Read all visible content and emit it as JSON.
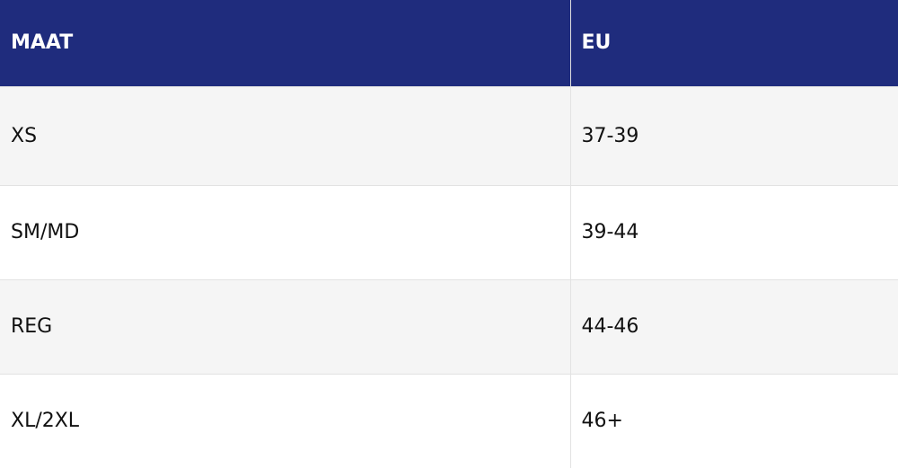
{
  "table": {
    "header": [
      "MAAT",
      "EU"
    ],
    "rows": [
      [
        "XS",
        "37-39"
      ],
      [
        "SM/MD",
        "39-44"
      ],
      [
        "REG",
        "44-46"
      ],
      [
        "XL/2XL",
        "46+"
      ]
    ]
  }
}
